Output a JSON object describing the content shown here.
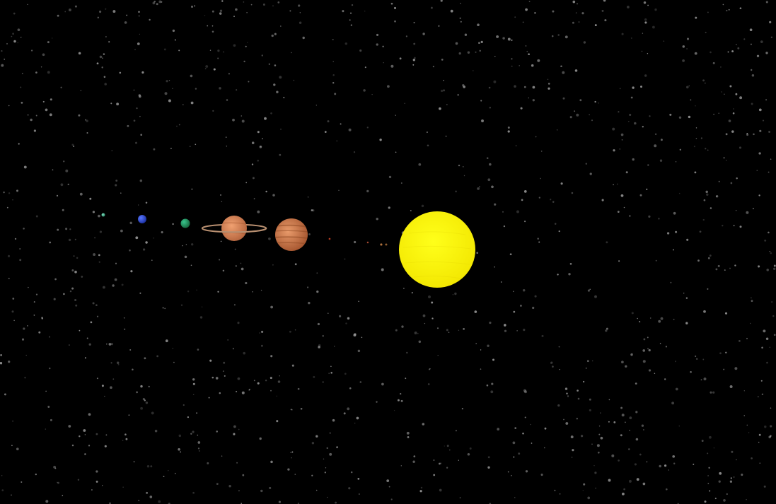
{
  "scene": {
    "background_color": "#000000",
    "star_color": "#b8b8b8",
    "bodies": [
      {
        "name": "sun",
        "colors": [
          "#ffff1a",
          "#f2e600"
        ]
      },
      {
        "name": "mercury",
        "colors": [
          "#b0783c",
          "#6a4020"
        ]
      },
      {
        "name": "venus",
        "colors": [
          "#d0905a",
          "#8a5020"
        ]
      },
      {
        "name": "earth",
        "colors": [
          "#c06040",
          "#702818"
        ]
      },
      {
        "name": "mars",
        "colors": [
          "#d04a2a",
          "#7a2010"
        ]
      },
      {
        "name": "jupiter",
        "colors": [
          "#e89a6a",
          "#a0502a"
        ]
      },
      {
        "name": "saturn",
        "colors": [
          "#f0a070",
          "#b0603a"
        ],
        "ring_color": "#b88f70"
      },
      {
        "name": "uranus",
        "colors": [
          "#39c48d",
          "#16673d"
        ]
      },
      {
        "name": "neptune",
        "colors": [
          "#5a78ff",
          "#1a2fa0"
        ]
      },
      {
        "name": "pluto",
        "colors": [
          "#7de0c0",
          "#2e8a6a"
        ]
      }
    ]
  }
}
